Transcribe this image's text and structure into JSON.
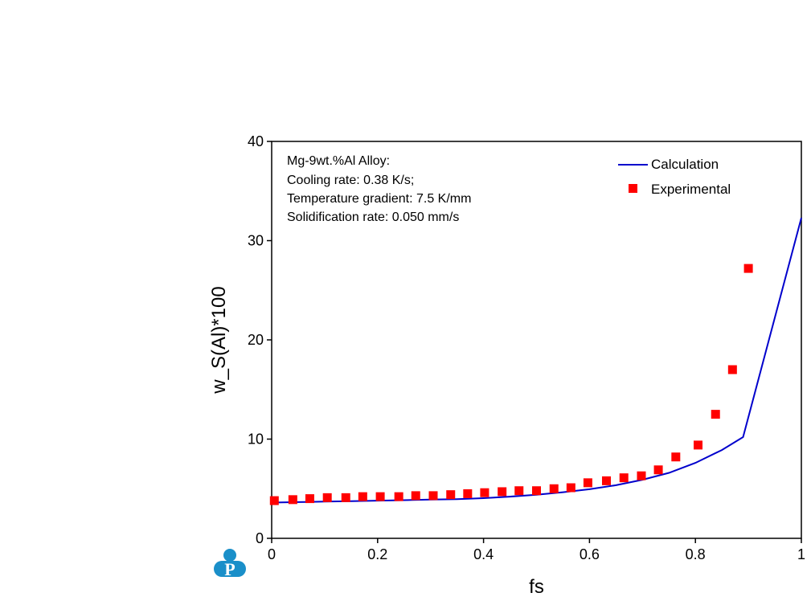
{
  "chart_data": {
    "type": "line",
    "xlabel": "fs",
    "ylabel": "w_S(Al)*100",
    "xlim": [
      0,
      1
    ],
    "ylim": [
      0,
      40
    ],
    "xticks": [
      0,
      0.2,
      0.4,
      0.6,
      0.8,
      1
    ],
    "xtick_labels": [
      "0",
      "0.2",
      "0.4",
      "0.6",
      "0.8",
      "1"
    ],
    "yticks": [
      0,
      10,
      20,
      30,
      40
    ],
    "ytick_labels": [
      "0",
      "10",
      "20",
      "30",
      "40"
    ],
    "grid": false,
    "legend_position": "top-right",
    "annotation_lines": [
      "Mg-9wt.%Al Alloy:",
      "Cooling rate: 0.38 K/s;",
      "Temperature gradient: 7.5 K/mm",
      "Solidification rate: 0.050 mm/s"
    ],
    "series": [
      {
        "name": "Calculation",
        "style": "line",
        "color": "#0000cc",
        "x": [
          0,
          0.05,
          0.1,
          0.15,
          0.2,
          0.25,
          0.3,
          0.35,
          0.4,
          0.45,
          0.5,
          0.55,
          0.6,
          0.65,
          0.7,
          0.75,
          0.8,
          0.85,
          0.89,
          1.0
        ],
        "y": [
          3.6,
          3.65,
          3.7,
          3.75,
          3.8,
          3.85,
          3.9,
          3.95,
          4.05,
          4.2,
          4.4,
          4.65,
          4.95,
          5.35,
          5.9,
          6.6,
          7.6,
          8.9,
          10.2,
          32.3
        ]
      },
      {
        "name": "Experimental",
        "style": "marker",
        "color": "#ff0000",
        "x": [
          0.005,
          0.04,
          0.072,
          0.105,
          0.14,
          0.172,
          0.205,
          0.24,
          0.272,
          0.305,
          0.338,
          0.37,
          0.402,
          0.435,
          0.467,
          0.5,
          0.533,
          0.565,
          0.597,
          0.632,
          0.665,
          0.698,
          0.73,
          0.763,
          0.805,
          0.838,
          0.87,
          0.9
        ],
        "y": [
          3.8,
          3.9,
          4.0,
          4.1,
          4.1,
          4.2,
          4.2,
          4.2,
          4.3,
          4.3,
          4.4,
          4.5,
          4.6,
          4.7,
          4.8,
          4.8,
          5.0,
          5.1,
          5.6,
          5.8,
          6.1,
          6.3,
          6.9,
          8.2,
          9.4,
          12.5,
          17.0,
          27.2
        ]
      }
    ]
  },
  "logo": {
    "letter": "P",
    "color": "#1a8fc9"
  }
}
